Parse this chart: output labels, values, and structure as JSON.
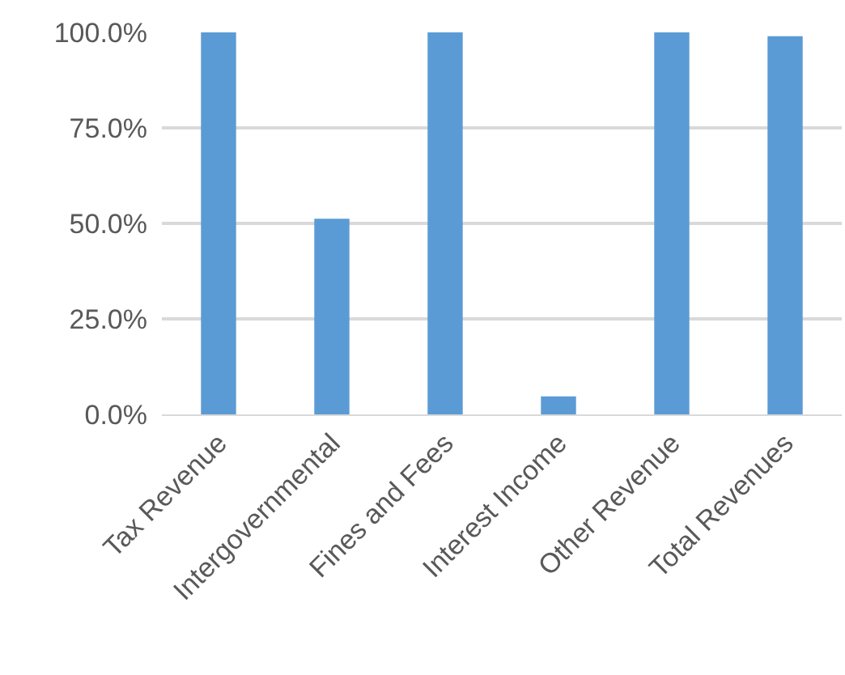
{
  "chart_data": {
    "type": "bar",
    "categories": [
      "Tax Revenue",
      "Intergovernmental",
      "Fines and Fees",
      "Interest Income",
      "Other Revenue",
      "Total Revenues"
    ],
    "values": [
      100,
      51.2,
      100,
      4.7,
      100,
      99.0
    ],
    "color": "#5b9bd5",
    "ylim": [
      0,
      100
    ],
    "yticks": [
      {
        "value": 0,
        "label": "0.0%"
      },
      {
        "value": 25,
        "label": "25.0%"
      },
      {
        "value": 50,
        "label": "50.0%"
      },
      {
        "value": 75,
        "label": "75.0%"
      },
      {
        "value": 100,
        "label": "100.0%"
      }
    ],
    "grid": "y"
  }
}
